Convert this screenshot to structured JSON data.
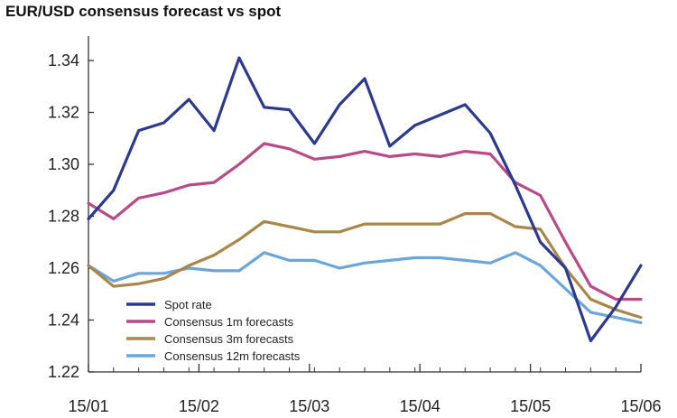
{
  "chart_data": {
    "type": "line",
    "title": "EUR/USD consensus forecast vs spot",
    "xlabel": "",
    "ylabel": "",
    "x_ticks": [
      "15/01",
      "15/02",
      "15/03",
      "15/04",
      "15/05",
      "15/06"
    ],
    "y_ticks": [
      "1.22",
      "1.24",
      "1.26",
      "1.28",
      "1.30",
      "1.32",
      "1.34"
    ],
    "xlim": [
      0,
      25
    ],
    "ylim": [
      1.22,
      1.345
    ],
    "grid": false,
    "legend_position": "bottom-left",
    "series": [
      {
        "name": "Spot rate",
        "color": "#2b3990",
        "values": [
          1.279,
          1.29,
          1.313,
          1.316,
          1.325,
          1.313,
          1.341,
          1.322,
          1.321,
          1.308,
          1.323,
          1.333,
          1.307,
          1.315,
          1.319,
          1.323,
          1.312,
          1.292,
          1.27,
          1.26,
          1.232,
          1.245,
          1.261
        ]
      },
      {
        "name": "Consensus 1m forecasts",
        "color": "#b94a86",
        "values": [
          1.285,
          1.279,
          1.287,
          1.289,
          1.292,
          1.293,
          1.3,
          1.308,
          1.306,
          1.302,
          1.303,
          1.305,
          1.303,
          1.304,
          1.303,
          1.305,
          1.304,
          1.293,
          1.288,
          1.27,
          1.253,
          1.248,
          1.248
        ]
      },
      {
        "name": "Consensus 3m forecasts",
        "color": "#a9874a",
        "values": [
          1.261,
          1.253,
          1.254,
          1.256,
          1.261,
          1.265,
          1.271,
          1.278,
          1.276,
          1.274,
          1.274,
          1.277,
          1.277,
          1.277,
          1.277,
          1.281,
          1.281,
          1.276,
          1.275,
          1.26,
          1.248,
          1.244,
          1.241
        ]
      },
      {
        "name": "Consensus 12m forecasts",
        "color": "#6aa6d9",
        "values": [
          1.261,
          1.255,
          1.258,
          1.258,
          1.26,
          1.259,
          1.259,
          1.266,
          1.263,
          1.263,
          1.26,
          1.262,
          1.263,
          1.264,
          1.264,
          1.263,
          1.262,
          1.266,
          1.261,
          1.252,
          1.243,
          1.241,
          1.239
        ]
      }
    ]
  }
}
